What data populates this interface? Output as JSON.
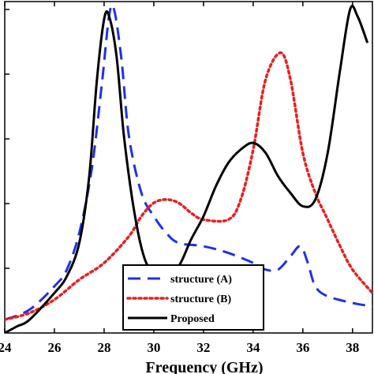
{
  "chart_data": {
    "type": "line",
    "xlabel": "Frequency (GHz)",
    "ylabel": "",
    "title": "",
    "xlim": [
      24,
      38.8
    ],
    "ylim": [
      0.03,
      1.0
    ],
    "grid": false,
    "legend_position": "bottom-center",
    "x_ticks": [
      "24",
      "26",
      "28",
      "30",
      "32",
      "34",
      "36",
      "38"
    ],
    "series": [
      {
        "name": "structure (A)",
        "color": "#1f32e6",
        "style": "dashed",
        "points": [
          [
            24,
            0.07
          ],
          [
            25,
            0.1
          ],
          [
            26,
            0.17
          ],
          [
            26.5,
            0.22
          ],
          [
            27,
            0.33
          ],
          [
            27.5,
            0.52
          ],
          [
            27.9,
            0.77
          ],
          [
            28.2,
            0.98
          ],
          [
            28.4,
            1.0
          ],
          [
            28.7,
            0.85
          ],
          [
            29,
            0.62
          ],
          [
            29.5,
            0.45
          ],
          [
            30,
            0.38
          ],
          [
            30.5,
            0.33
          ],
          [
            31,
            0.3
          ],
          [
            32,
            0.29
          ],
          [
            33,
            0.27
          ],
          [
            34,
            0.24
          ],
          [
            34.5,
            0.22
          ],
          [
            35,
            0.22
          ],
          [
            35.5,
            0.26
          ],
          [
            35.9,
            0.29
          ],
          [
            36.2,
            0.24
          ],
          [
            36.5,
            0.17
          ],
          [
            37,
            0.14
          ],
          [
            38,
            0.12
          ],
          [
            38.8,
            0.11
          ]
        ]
      },
      {
        "name": "structure (B)",
        "color": "#e62020",
        "style": "dotted",
        "points": [
          [
            24,
            0.07
          ],
          [
            25,
            0.09
          ],
          [
            26,
            0.13
          ],
          [
            27,
            0.19
          ],
          [
            28,
            0.24
          ],
          [
            29,
            0.32
          ],
          [
            29.5,
            0.38
          ],
          [
            30,
            0.42
          ],
          [
            30.5,
            0.43
          ],
          [
            31,
            0.42
          ],
          [
            31.5,
            0.39
          ],
          [
            32,
            0.37
          ],
          [
            33,
            0.37
          ],
          [
            33.5,
            0.43
          ],
          [
            34,
            0.58
          ],
          [
            34.5,
            0.79
          ],
          [
            35.1,
            0.87
          ],
          [
            35.5,
            0.79
          ],
          [
            36,
            0.57
          ],
          [
            36.5,
            0.45
          ],
          [
            37,
            0.37
          ],
          [
            37.5,
            0.29
          ],
          [
            38,
            0.22
          ],
          [
            38.8,
            0.15
          ]
        ]
      },
      {
        "name": "Proposed",
        "color": "#000000",
        "style": "solid",
        "points": [
          [
            24,
            0.03
          ],
          [
            24.5,
            0.05
          ],
          [
            25,
            0.07
          ],
          [
            26,
            0.15
          ],
          [
            26.5,
            0.2
          ],
          [
            27,
            0.3
          ],
          [
            27.4,
            0.5
          ],
          [
            27.7,
            0.78
          ],
          [
            28,
            0.97
          ],
          [
            28.2,
            0.98
          ],
          [
            28.5,
            0.86
          ],
          [
            28.8,
            0.62
          ],
          [
            29.2,
            0.4
          ],
          [
            29.6,
            0.26
          ],
          [
            30,
            0.21
          ],
          [
            30.5,
            0.21
          ],
          [
            31,
            0.23
          ],
          [
            31.5,
            0.31
          ],
          [
            32,
            0.38
          ],
          [
            32.5,
            0.47
          ],
          [
            33,
            0.54
          ],
          [
            33.5,
            0.58
          ],
          [
            34,
            0.6
          ],
          [
            34.5,
            0.57
          ],
          [
            35,
            0.5
          ],
          [
            35.5,
            0.45
          ],
          [
            36,
            0.41
          ],
          [
            36.5,
            0.43
          ],
          [
            37,
            0.57
          ],
          [
            37.5,
            0.82
          ],
          [
            37.9,
            1.0
          ],
          [
            38.2,
            0.98
          ],
          [
            38.6,
            0.9
          ]
        ]
      }
    ]
  }
}
